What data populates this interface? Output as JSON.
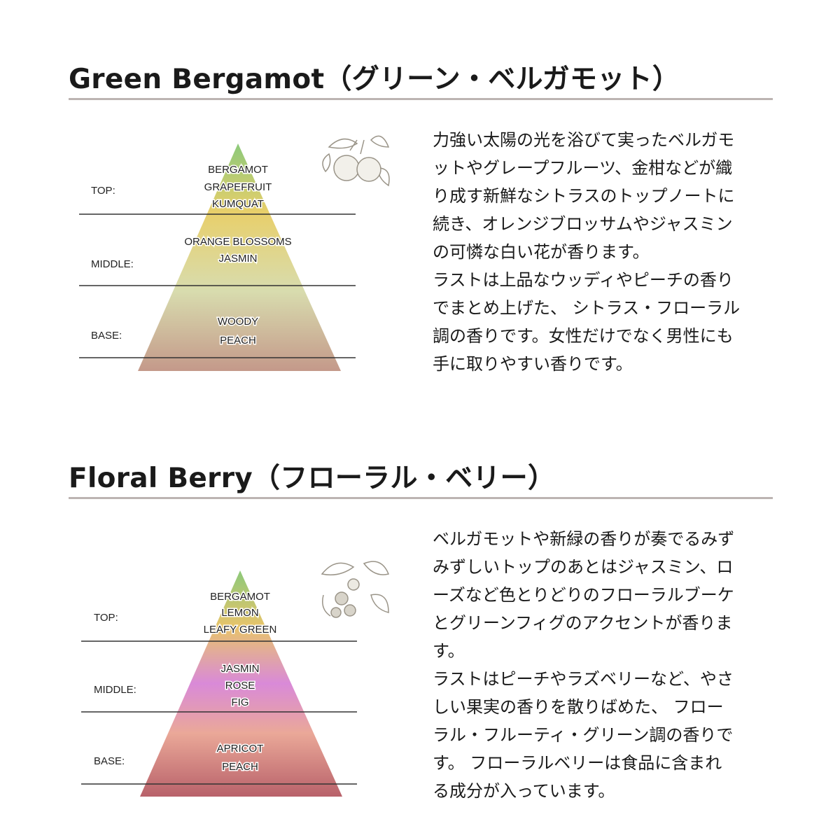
{
  "sections": [
    {
      "title": "Green Bergamot（グリーン・ベルガモット）",
      "levels": {
        "top": "TOP:",
        "middle": "MIDDLE:",
        "base": "BASE:"
      },
      "notes": {
        "top": [
          "BERGAMOT",
          "GRAPEFRUIT",
          "KUMQUAT"
        ],
        "middle": [
          "ORANGE BLOSSOMS",
          "JASMIN"
        ],
        "base": [
          "WOODY",
          "PEACH"
        ]
      },
      "colors": [
        "#8cc97a",
        "#e8cf6a",
        "#d8dcae",
        "#c4998a"
      ],
      "illustration": "citrus-bergamot-sketch",
      "description": [
        "力強い太陽の光を浴びて実ったベルガモ",
        "ットやグレープフルーツ、金柑などが織",
        "り成す新鮮なシトラスのトップノートに",
        "続き、オレンジブロッサムやジャスミン",
        "の可憐な白い花が香ります。",
        "ラストは上品なウッディやピーチの香り",
        "でまとめ上げた、 シトラス・フローラル",
        "調の香りです。女性だけでなく男性にも",
        "手に取りやすい香りです。"
      ]
    },
    {
      "title": "Floral Berry（フローラル・ベリー）",
      "levels": {
        "top": "TOP:",
        "middle": "MIDDLE:",
        "base": "BASE:"
      },
      "notes": {
        "top": [
          "BERGAMOT",
          "LEMON",
          "LEAFY GREEN"
        ],
        "middle": [
          "JASMIN",
          "ROSE",
          "FIG"
        ],
        "base": [
          "APRICOT",
          "PEACH"
        ]
      },
      "colors": [
        "#8cc97a",
        "#e8c46a",
        "#d98ad8",
        "#eaa898",
        "#b8616a"
      ],
      "illustration": "raspberry-sketch",
      "description": [
        "ベルガモットや新緑の香りが奏でるみず",
        "みずしいトップのあとはジャスミン、ロ",
        "ーズなど色とりどりのフローラルブーケ",
        "とグリーンフィグのアクセントが香りま",
        "す。",
        "ラストはピーチやラズベリーなど、やさ",
        "しい果実の香りを散りばめた、 フロー",
        "ラル・フルーティ・グリーン調の香りで",
        "す。 フローラルベリーは食品に含まれ",
        "る成分が入っています。"
      ]
    }
  ]
}
